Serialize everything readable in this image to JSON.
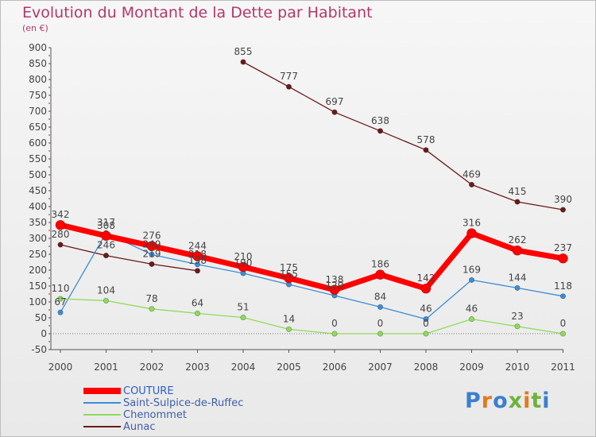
{
  "title": "Evolution du Montant de la Dette par Habitant",
  "subtitle": "(en €)",
  "logo": {
    "text": "Proxiti",
    "colors": [
      "#3a7fd0",
      "#e27a1c",
      "#3a7fd0",
      "#6fb23a",
      "#e27a1c",
      "#6fb23a",
      "#3a7fd0"
    ]
  },
  "chart_data": {
    "type": "line",
    "title": "Evolution du Montant de la Dette par Habitant",
    "ylabel": "(en €)",
    "xlabel": "",
    "x": [
      "2000",
      "2001",
      "2002",
      "2003",
      "2004",
      "2005",
      "2006",
      "2007",
      "2008",
      "2009",
      "2010",
      "2011"
    ],
    "ylim": [
      -50,
      900
    ],
    "yticks": [
      "-50",
      "0",
      "50",
      "100",
      "150",
      "200",
      "250",
      "300",
      "350",
      "400",
      "450",
      "500",
      "550",
      "600",
      "650",
      "700",
      "750",
      "800",
      "850",
      "900"
    ],
    "grid": false,
    "legend": "bottom-left",
    "series": [
      {
        "name": "COUTURE",
        "color": "#ff0000",
        "values": [
          342,
          308,
          276,
          244,
          210,
          175,
          138,
          186,
          142,
          316,
          262,
          237
        ],
        "labels": [
          "342",
          "308",
          "276",
          "244",
          "210",
          "175",
          "138",
          "186",
          "142",
          "316",
          "262",
          "237"
        ]
      },
      {
        "name": "Saint-Sulpice-de-Ruffec",
        "color": "#3b8ed4",
        "values": [
          67,
          317,
          249,
          218,
          190,
          155,
          120,
          84,
          46,
          169,
          144,
          118
        ],
        "labels": [
          "67",
          "317",
          "249",
          "218",
          "190",
          "155",
          "120",
          "84",
          "46",
          "169",
          "144",
          "118"
        ]
      },
      {
        "name": "Chenommet",
        "color": "#8edc5a",
        "values": [
          110,
          104,
          78,
          64,
          51,
          14,
          0,
          0,
          0,
          46,
          23,
          0
        ],
        "labels": [
          "110",
          "104",
          "78",
          "64",
          "51",
          "14",
          "0",
          "0",
          "0",
          "46",
          "23",
          "0"
        ]
      },
      {
        "name": "Aunac",
        "color": "#6b1a1a",
        "values": [
          280,
          246,
          219,
          198,
          855,
          777,
          697,
          638,
          578,
          469,
          415,
          390
        ],
        "labels": [
          "280",
          "246",
          "219",
          "198",
          "855",
          "777",
          "697",
          "638",
          "578",
          "469",
          "415",
          "390"
        ],
        "segments": [
          [
            0,
            3
          ],
          [
            4,
            11
          ]
        ]
      }
    ]
  }
}
